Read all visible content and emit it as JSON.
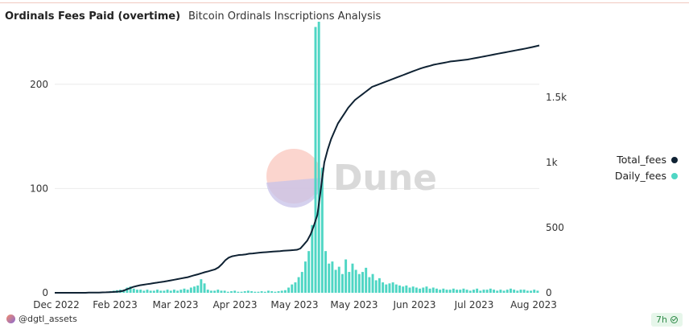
{
  "header": {
    "title": "Ordinals Fees Paid (overtime)",
    "subtitle": "Bitcoin Ordinals Inscriptions Analysis"
  },
  "watermark": {
    "text": "Dune"
  },
  "footer": {
    "user": "@dgtl_assets",
    "age": "7h"
  },
  "colors": {
    "total_line": "#0f2233",
    "daily_bars": "#4fd6c4",
    "grid": "#ececec",
    "axis_text": "#333333"
  },
  "chart_data": {
    "type": "bar",
    "x_tick_labels": [
      "Dec 2022",
      "Feb 2023",
      "Mar 2023",
      "Apr 2023",
      "May 2023",
      "May 2023",
      "Jun 2023",
      "Jul 2023",
      "Aug 2023"
    ],
    "y_left": {
      "ticks": [
        "0",
        "100",
        "200"
      ],
      "range": [
        0,
        250
      ]
    },
    "y_right": {
      "ticks": [
        "0",
        "500",
        "1k",
        "1.5k"
      ],
      "range": [
        0,
        2000
      ]
    },
    "legend": {
      "placement": "right"
    },
    "grid": true,
    "series": [
      {
        "name": "Total_fees",
        "kind": "line",
        "axis": "right",
        "color": "#0f2233",
        "values": [
          0,
          0,
          0,
          0,
          0,
          0,
          0,
          0,
          0,
          0,
          1,
          1,
          1,
          2,
          3,
          4,
          5,
          6,
          8,
          10,
          15,
          25,
          35,
          45,
          52,
          58,
          62,
          66,
          70,
          74,
          78,
          82,
          86,
          90,
          95,
          100,
          105,
          110,
          115,
          120,
          128,
          135,
          142,
          150,
          158,
          165,
          172,
          180,
          195,
          220,
          250,
          270,
          280,
          285,
          290,
          292,
          295,
          300,
          302,
          305,
          308,
          310,
          312,
          314,
          316,
          318,
          320,
          322,
          324,
          326,
          328,
          330,
          340,
          370,
          400,
          450,
          520,
          600,
          800,
          1000,
          1100,
          1180,
          1240,
          1300,
          1340,
          1380,
          1420,
          1450,
          1480,
          1500,
          1520,
          1540,
          1560,
          1580,
          1590,
          1600,
          1610,
          1620,
          1630,
          1640,
          1650,
          1660,
          1670,
          1680,
          1690,
          1700,
          1710,
          1720,
          1728,
          1735,
          1742,
          1750,
          1755,
          1760,
          1765,
          1770,
          1775,
          1778,
          1781,
          1784,
          1787,
          1790,
          1795,
          1800,
          1805,
          1810,
          1815,
          1820,
          1825,
          1830,
          1835,
          1840,
          1845,
          1850,
          1855,
          1860,
          1865,
          1870,
          1875,
          1880,
          1886,
          1892,
          1898
        ]
      },
      {
        "name": "Daily_fees",
        "kind": "bar",
        "axis": "left",
        "color": "#4fd6c4",
        "values": [
          0,
          0,
          0,
          0,
          0,
          0,
          0,
          0,
          0,
          0,
          0,
          0.3,
          0.4,
          0.6,
          0.8,
          1,
          1.5,
          2,
          2.5,
          3,
          3,
          5,
          6,
          4,
          3,
          3,
          2,
          3,
          2,
          2,
          3,
          2,
          2,
          3,
          2,
          3,
          2,
          3,
          4,
          3,
          5,
          6,
          7,
          13,
          9,
          3,
          2,
          2,
          3,
          2,
          2,
          1,
          1.5,
          2,
          1,
          1,
          1.5,
          2,
          1.5,
          1,
          1,
          1.5,
          1,
          2,
          1.5,
          1,
          1.5,
          2,
          2.5,
          5,
          8,
          10,
          15,
          20,
          30,
          40,
          65,
          255,
          260,
          120,
          40,
          28,
          30,
          22,
          25,
          18,
          32,
          20,
          28,
          22,
          18,
          20,
          24,
          15,
          18,
          12,
          14,
          10,
          8,
          9,
          10,
          8,
          7,
          6,
          7,
          5,
          6,
          5,
          4,
          5,
          6,
          4,
          5,
          4,
          3,
          4,
          3,
          3,
          4,
          3,
          3,
          4,
          3,
          2,
          3,
          4,
          2,
          3,
          3,
          4,
          3,
          2,
          3,
          2,
          3,
          4,
          3,
          2,
          3,
          3,
          2,
          2,
          3,
          2
        ]
      }
    ]
  }
}
